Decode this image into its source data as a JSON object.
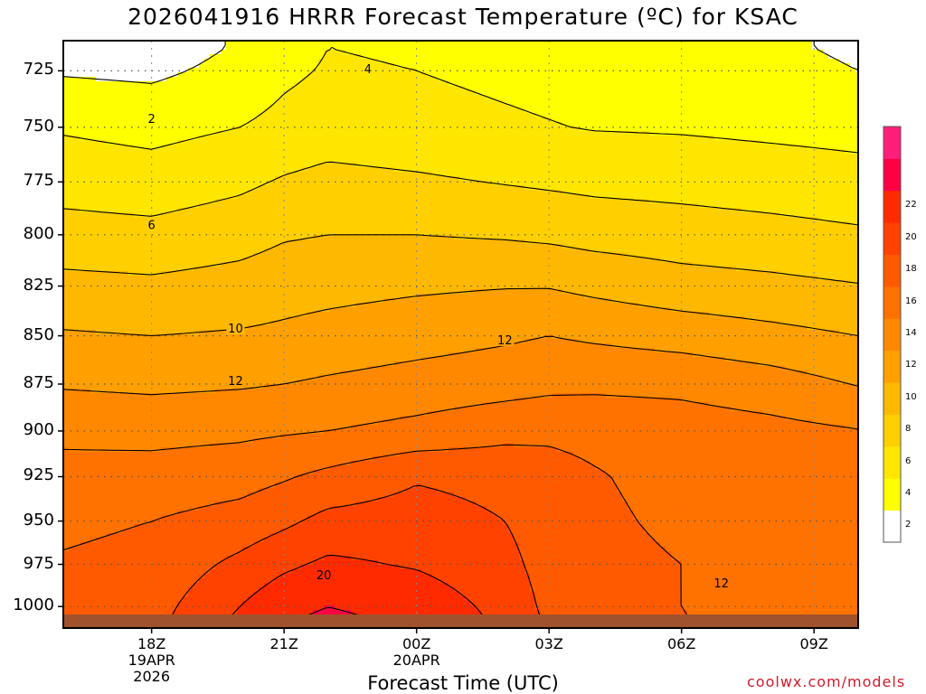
{
  "title": "2026041916 HRRR Forecast Temperature (ºC) for KSAC",
  "xlabel": "Forecast Time (UTC)",
  "watermark": "coolwx.com/models",
  "colors": {
    "bands": [
      "#ffffff",
      "#ffff00",
      "#ffe600",
      "#ffcf00",
      "#ffb800",
      "#ffa000",
      "#ff8800",
      "#ff7200",
      "#ff5a00",
      "#ff4200",
      "#ff2a00",
      "#ff0045",
      "#ff1e7a"
    ],
    "contour": "#000000",
    "ground": "#a0522d"
  },
  "chart_data": {
    "type": "contour",
    "title": "2026041916 HRRR Forecast Temperature (ºC) for KSAC",
    "xlabel": "Forecast Time (UTC)",
    "ylabel": "",
    "y_axis": "pressure (hPa), inverted",
    "ylim": [
      1013,
      712
    ],
    "xlim_hours": [
      -2,
      16
    ],
    "x_ticks": [
      {
        "hour": 0,
        "label": "18Z",
        "sub1": "19APR",
        "sub2": "2026"
      },
      {
        "hour": 3,
        "label": "21Z",
        "sub1": "",
        "sub2": ""
      },
      {
        "hour": 6,
        "label": "00Z",
        "sub1": "20APR",
        "sub2": ""
      },
      {
        "hour": 9,
        "label": "03Z",
        "sub1": "",
        "sub2": ""
      },
      {
        "hour": 12,
        "label": "06Z",
        "sub1": "",
        "sub2": ""
      },
      {
        "hour": 15,
        "label": "09Z",
        "sub1": "",
        "sub2": ""
      }
    ],
    "y_ticks": [
      725,
      750,
      775,
      800,
      825,
      850,
      875,
      900,
      925,
      950,
      975,
      1000
    ],
    "grid": true,
    "colorbar": {
      "levels": [
        2,
        4,
        6,
        8,
        10,
        12,
        14,
        16,
        18,
        20,
        22
      ],
      "labels": [
        "2",
        "4",
        "6",
        "8",
        "10",
        "12",
        "14",
        "16",
        "18",
        "20",
        "22"
      ]
    },
    "contour_labels": [
      {
        "text": "2",
        "x": 0,
        "y": 746
      },
      {
        "text": "4",
        "x": 4.9,
        "y": 724
      },
      {
        "text": "6",
        "x": 0,
        "y": 795
      },
      {
        "text": "10",
        "x": 1.9,
        "y": 846
      },
      {
        "text": "12",
        "x": 1.9,
        "y": 873
      },
      {
        "text": "12",
        "x": 8.0,
        "y": 852
      },
      {
        "text": "12",
        "x": 12.9,
        "y": 986
      },
      {
        "text": "20",
        "x": 3.9,
        "y": 981
      }
    ],
    "temperature_grid": {
      "times": [
        -2,
        0,
        2,
        3,
        4,
        6,
        8,
        9,
        10,
        12,
        14,
        16
      ],
      "pressures": [
        715,
        725,
        750,
        775,
        800,
        825,
        850,
        875,
        900,
        925,
        950,
        975,
        1000,
        1010
      ],
      "values": [
        [
          1.2,
          1.0,
          2.2,
          3.2,
          4.0,
          3.8,
          3.4,
          3.2,
          3.0,
          2.6,
          2.2,
          1.8
        ],
        [
          1.8,
          1.6,
          2.6,
          3.6,
          4.2,
          4.0,
          3.6,
          3.4,
          3.2,
          2.8,
          2.4,
          2.0
        ],
        [
          3.8,
          3.4,
          4.0,
          4.6,
          5.0,
          4.7,
          4.3,
          4.1,
          3.9,
          3.8,
          3.6,
          3.4
        ],
        [
          5.2,
          4.9,
          5.6,
          6.2,
          6.6,
          6.3,
          5.9,
          5.7,
          5.5,
          5.3,
          5.0,
          4.7
        ],
        [
          6.8,
          6.6,
          7.2,
          7.8,
          8.0,
          8.0,
          7.8,
          7.6,
          7.3,
          7.0,
          6.7,
          6.3
        ],
        [
          8.6,
          8.4,
          8.8,
          9.2,
          9.4,
          9.7,
          9.9,
          9.9,
          9.5,
          8.8,
          8.5,
          8.1
        ],
        [
          10.2,
          10.0,
          10.2,
          10.4,
          10.7,
          11.2,
          11.7,
          12.0,
          11.7,
          11.2,
          10.6,
          10.0
        ],
        [
          11.8,
          11.6,
          11.8,
          12.0,
          12.3,
          12.8,
          13.2,
          13.5,
          13.6,
          13.5,
          12.9,
          11.9
        ],
        [
          13.6,
          13.4,
          13.6,
          13.8,
          14.0,
          14.6,
          15.4,
          15.6,
          15.4,
          15.0,
          14.6,
          14.1
        ],
        [
          14.6,
          14.8,
          15.2,
          15.8,
          16.5,
          17.8,
          17.4,
          16.8,
          16.2,
          15.2,
          14.7,
          14.3
        ],
        [
          15.6,
          16.0,
          16.8,
          17.6,
          18.6,
          18.9,
          18.0,
          17.0,
          16.5,
          15.5,
          14.8,
          14.5
        ],
        [
          16.2,
          16.6,
          18.5,
          19.6,
          20.4,
          19.8,
          18.6,
          17.2,
          16.8,
          16.0,
          14.6,
          14.2
        ],
        [
          16.6,
          17.2,
          20.0,
          21.5,
          22.0,
          21.4,
          19.3,
          17.5,
          17.0,
          16.0,
          14.4,
          14.0
        ],
        [
          16.8,
          17.4,
          20.5,
          22.0,
          22.4,
          21.8,
          19.6,
          17.7,
          17.2,
          16.2,
          14.6,
          14.1
        ]
      ]
    }
  }
}
